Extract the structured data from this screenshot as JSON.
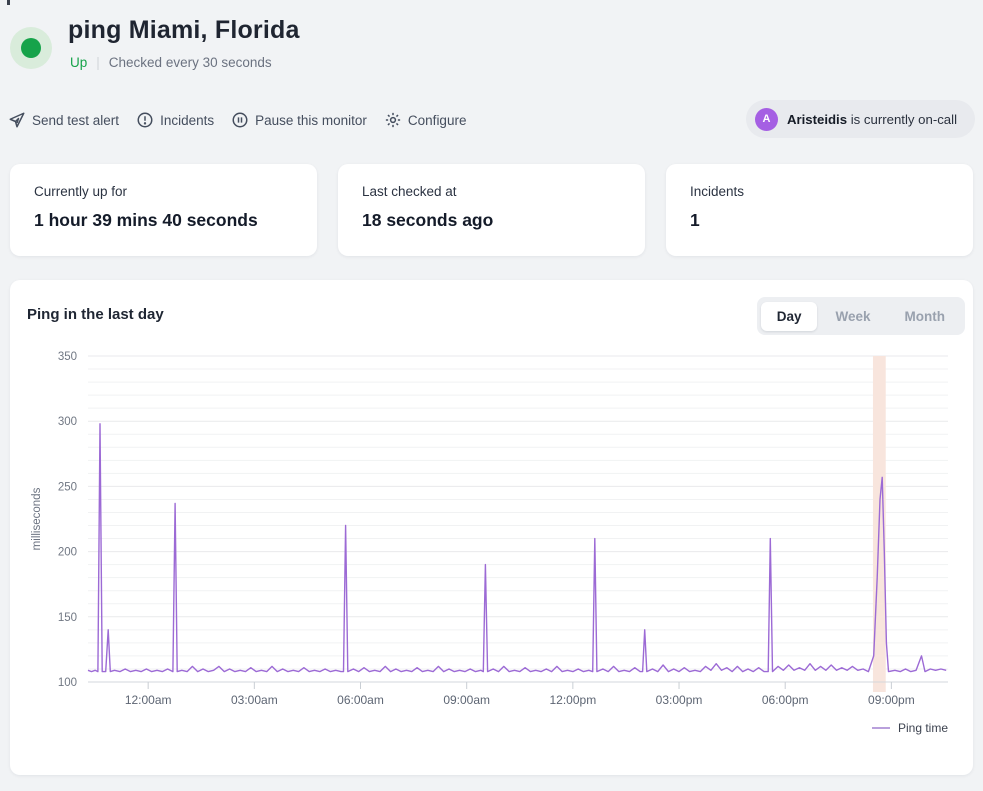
{
  "header": {
    "title": "ping Miami, Florida",
    "status_label": "Up",
    "divider": "|",
    "check_interval": "Checked every 30 seconds"
  },
  "toolbar": {
    "send_test_alert": "Send test alert",
    "incidents": "Incidents",
    "pause": "Pause this monitor",
    "configure": "Configure",
    "oncall": {
      "avatar_initial": "A",
      "name": "Aristeidis",
      "suffix": " is currently on-call"
    }
  },
  "stats": [
    {
      "label": "Currently up for",
      "value": "1 hour 39 mins 40 seconds"
    },
    {
      "label": "Last checked at",
      "value": "18 seconds ago"
    },
    {
      "label": "Incidents",
      "value": "1"
    }
  ],
  "chart_card": {
    "title": "Ping in the last day",
    "tabs": [
      {
        "label": "Day"
      },
      {
        "label": "Week"
      },
      {
        "label": "Month"
      }
    ],
    "legend_label": "Ping time"
  },
  "colors": {
    "status_green": "#16a34a",
    "avatar_purple": "#a55fe3",
    "line_purple": "#9c6ad5",
    "legend_purple": "#b9a0dc",
    "incident_band": "#f8e5dd"
  },
  "chart_data": {
    "type": "line",
    "title": "Ping in the last day",
    "ylabel": "milliseconds",
    "ylim": [
      100,
      350
    ],
    "yticks": [
      100,
      150,
      200,
      250,
      300,
      350
    ],
    "grid": {
      "minor_step": 10,
      "major_step": 50,
      "minor_color": "#f1f2f3",
      "major_color": "#e9eaec"
    },
    "x_domain_hours": [
      -1.7,
      22.6
    ],
    "xticks": [
      {
        "hour": 0,
        "label": "12:00am"
      },
      {
        "hour": 3,
        "label": "03:00am"
      },
      {
        "hour": 6,
        "label": "06:00am"
      },
      {
        "hour": 9,
        "label": "09:00am"
      },
      {
        "hour": 12,
        "label": "12:00pm"
      },
      {
        "hour": 15,
        "label": "03:00pm"
      },
      {
        "hour": 18,
        "label": "06:00pm"
      },
      {
        "hour": 21,
        "label": "09:00pm"
      }
    ],
    "incident_band_hours": [
      20.48,
      20.84
    ],
    "legend_position": "bottom-right",
    "series": [
      {
        "name": "Ping time",
        "color": "#9c6ad5",
        "points": [
          [
            -1.7,
            109
          ],
          [
            -1.6,
            108
          ],
          [
            -1.5,
            109
          ],
          [
            -1.42,
            108
          ],
          [
            -1.36,
            298
          ],
          [
            -1.3,
            108
          ],
          [
            -1.2,
            108
          ],
          [
            -1.13,
            140
          ],
          [
            -1.07,
            108
          ],
          [
            -0.95,
            109
          ],
          [
            -0.8,
            108
          ],
          [
            -0.65,
            110
          ],
          [
            -0.5,
            108
          ],
          [
            -0.35,
            109
          ],
          [
            -0.2,
            108
          ],
          [
            -0.05,
            110
          ],
          [
            0.1,
            108
          ],
          [
            0.25,
            109
          ],
          [
            0.4,
            108
          ],
          [
            0.55,
            110
          ],
          [
            0.7,
            108
          ],
          [
            0.76,
            237
          ],
          [
            0.82,
            108
          ],
          [
            0.95,
            109
          ],
          [
            1.1,
            108
          ],
          [
            1.25,
            112
          ],
          [
            1.4,
            108
          ],
          [
            1.55,
            110
          ],
          [
            1.7,
            108
          ],
          [
            1.85,
            109
          ],
          [
            2.0,
            112
          ],
          [
            2.15,
            108
          ],
          [
            2.3,
            110
          ],
          [
            2.45,
            108
          ],
          [
            2.6,
            109
          ],
          [
            2.75,
            108
          ],
          [
            2.9,
            111
          ],
          [
            3.05,
            108
          ],
          [
            3.2,
            109
          ],
          [
            3.35,
            108
          ],
          [
            3.5,
            112
          ],
          [
            3.65,
            108
          ],
          [
            3.8,
            110
          ],
          [
            3.95,
            108
          ],
          [
            4.1,
            109
          ],
          [
            4.25,
            108
          ],
          [
            4.4,
            111
          ],
          [
            4.55,
            108
          ],
          [
            4.7,
            109
          ],
          [
            4.85,
            108
          ],
          [
            5.0,
            110
          ],
          [
            5.15,
            108
          ],
          [
            5.3,
            109
          ],
          [
            5.45,
            108
          ],
          [
            5.52,
            108
          ],
          [
            5.58,
            220
          ],
          [
            5.64,
            108
          ],
          [
            5.8,
            110
          ],
          [
            5.95,
            108
          ],
          [
            6.1,
            111
          ],
          [
            6.25,
            108
          ],
          [
            6.4,
            109
          ],
          [
            6.55,
            108
          ],
          [
            6.7,
            112
          ],
          [
            6.85,
            108
          ],
          [
            7.0,
            110
          ],
          [
            7.15,
            108
          ],
          [
            7.3,
            109
          ],
          [
            7.45,
            108
          ],
          [
            7.6,
            111
          ],
          [
            7.75,
            108
          ],
          [
            7.9,
            109
          ],
          [
            8.05,
            108
          ],
          [
            8.2,
            112
          ],
          [
            8.35,
            108
          ],
          [
            8.5,
            110
          ],
          [
            8.65,
            108
          ],
          [
            8.8,
            109
          ],
          [
            8.95,
            108
          ],
          [
            9.1,
            110
          ],
          [
            9.25,
            108
          ],
          [
            9.4,
            109
          ],
          [
            9.47,
            108
          ],
          [
            9.53,
            190
          ],
          [
            9.59,
            108
          ],
          [
            9.75,
            110
          ],
          [
            9.9,
            108
          ],
          [
            10.05,
            112
          ],
          [
            10.2,
            108
          ],
          [
            10.35,
            109
          ],
          [
            10.5,
            108
          ],
          [
            10.65,
            111
          ],
          [
            10.8,
            108
          ],
          [
            10.95,
            109
          ],
          [
            11.1,
            108
          ],
          [
            11.25,
            110
          ],
          [
            11.4,
            108
          ],
          [
            11.55,
            112
          ],
          [
            11.7,
            108
          ],
          [
            11.85,
            109
          ],
          [
            12.0,
            108
          ],
          [
            12.15,
            110
          ],
          [
            12.3,
            108
          ],
          [
            12.45,
            109
          ],
          [
            12.56,
            108
          ],
          [
            12.62,
            210
          ],
          [
            12.68,
            108
          ],
          [
            12.85,
            110
          ],
          [
            13.0,
            108
          ],
          [
            13.15,
            112
          ],
          [
            13.3,
            108
          ],
          [
            13.45,
            109
          ],
          [
            13.6,
            108
          ],
          [
            13.75,
            111
          ],
          [
            13.9,
            108
          ],
          [
            13.97,
            108
          ],
          [
            14.03,
            140
          ],
          [
            14.09,
            108
          ],
          [
            14.25,
            110
          ],
          [
            14.4,
            108
          ],
          [
            14.55,
            113
          ],
          [
            14.7,
            108
          ],
          [
            14.85,
            110
          ],
          [
            15.0,
            108
          ],
          [
            15.15,
            111
          ],
          [
            15.3,
            108
          ],
          [
            15.45,
            109
          ],
          [
            15.6,
            108
          ],
          [
            15.75,
            112
          ],
          [
            15.9,
            109
          ],
          [
            16.05,
            114
          ],
          [
            16.2,
            109
          ],
          [
            16.35,
            111
          ],
          [
            16.5,
            108
          ],
          [
            16.65,
            112
          ],
          [
            16.8,
            108
          ],
          [
            16.95,
            110
          ],
          [
            17.1,
            108
          ],
          [
            17.25,
            111
          ],
          [
            17.4,
            108
          ],
          [
            17.52,
            108
          ],
          [
            17.58,
            210
          ],
          [
            17.64,
            108
          ],
          [
            17.8,
            112
          ],
          [
            17.95,
            109
          ],
          [
            18.1,
            113
          ],
          [
            18.25,
            109
          ],
          [
            18.4,
            111
          ],
          [
            18.55,
            109
          ],
          [
            18.7,
            114
          ],
          [
            18.85,
            109
          ],
          [
            19.0,
            112
          ],
          [
            19.15,
            109
          ],
          [
            19.3,
            113
          ],
          [
            19.45,
            109
          ],
          [
            19.6,
            111
          ],
          [
            19.75,
            109
          ],
          [
            19.9,
            112
          ],
          [
            20.05,
            109
          ],
          [
            20.2,
            110
          ],
          [
            20.35,
            108
          ],
          [
            20.5,
            120
          ],
          [
            20.6,
            180
          ],
          [
            20.68,
            240
          ],
          [
            20.74,
            257
          ],
          [
            20.8,
            200
          ],
          [
            20.86,
            130
          ],
          [
            20.92,
            108
          ],
          [
            21.1,
            109
          ],
          [
            21.25,
            108
          ],
          [
            21.4,
            110
          ],
          [
            21.55,
            108
          ],
          [
            21.7,
            109
          ],
          [
            21.85,
            120
          ],
          [
            21.95,
            108
          ],
          [
            22.1,
            110
          ],
          [
            22.25,
            109
          ],
          [
            22.4,
            110
          ],
          [
            22.55,
            109
          ]
        ]
      }
    ]
  }
}
